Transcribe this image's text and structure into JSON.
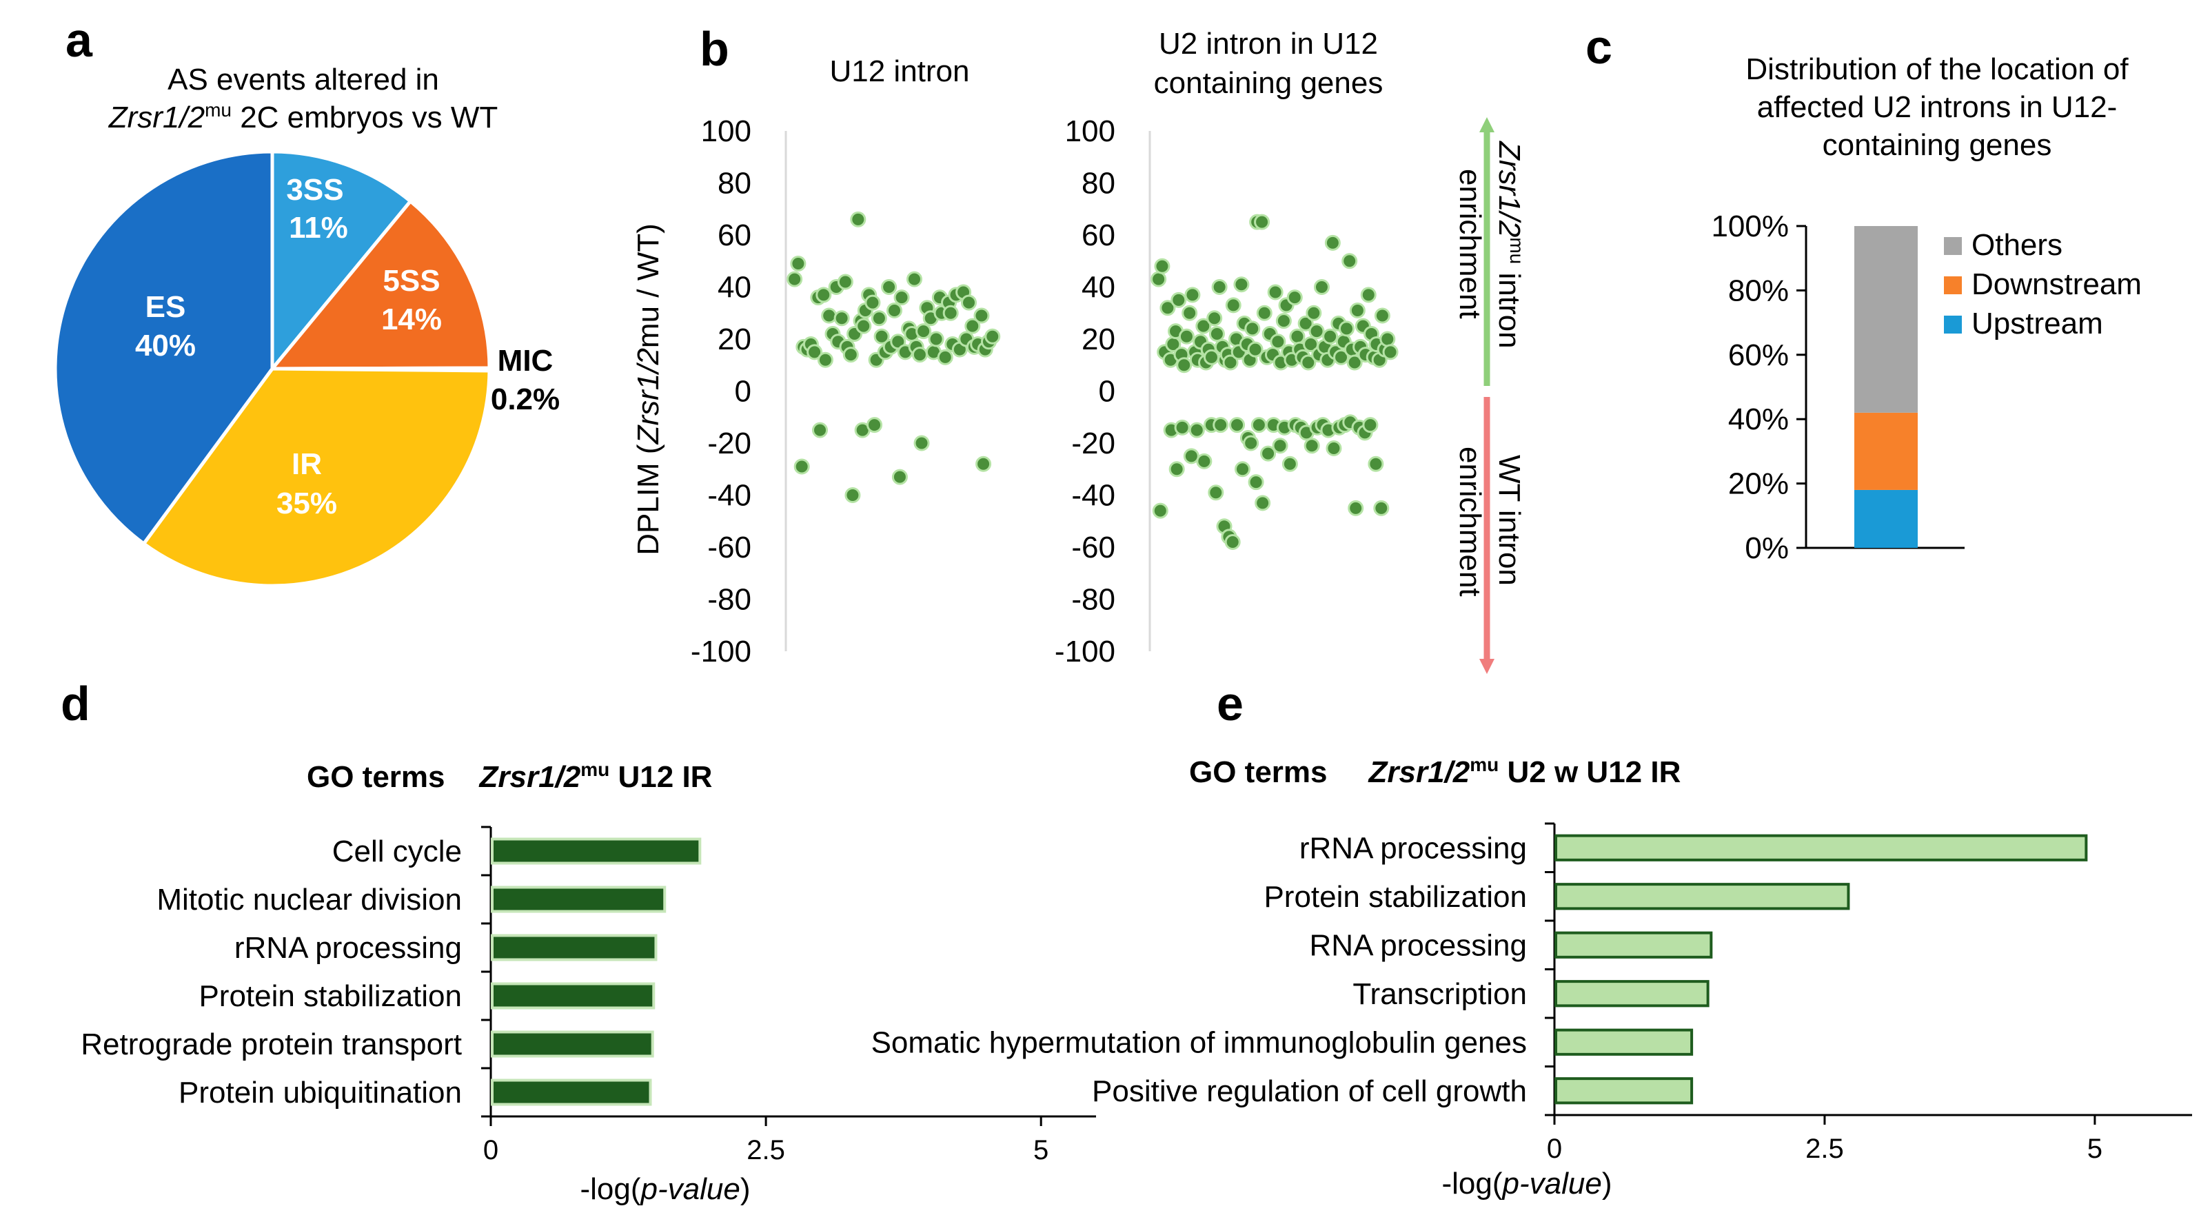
{
  "panels": {
    "a": "a",
    "b": "b",
    "c": "c",
    "d": "d",
    "e": "e"
  },
  "colors": {
    "dark_green": "#1e5c1e",
    "mid_green": "#2e7d32",
    "light_green": "#c6e6b8",
    "pale_green_fill": "#b8e0a6",
    "point_fill": "#4a8f3a",
    "point_stroke": "#b5e3a5",
    "axis": "#000000",
    "grid": "#d9d9d9",
    "arrow_green": "#8fcf7a",
    "arrow_red": "#f07d7d"
  },
  "chart_data": [
    {
      "id": "pie",
      "type": "pie",
      "title_line1": "AS events  altered in",
      "title_italic": "Zrsr1/2",
      "title_sup": "mu",
      "title_line2_rest": " 2C embryos vs WT",
      "slices": [
        {
          "name": "3SS",
          "value": 11,
          "pct_label": "11%",
          "color": "#2e9fdc"
        },
        {
          "name": "5SS",
          "value": 14,
          "pct_label": "14%",
          "color": "#f26d21"
        },
        {
          "name": "MIC",
          "value": 0.2,
          "pct_label": "0.2%",
          "color": "#8c8c8c"
        },
        {
          "name": "IR",
          "value": 35,
          "pct_label": "35%",
          "color": "#ffc20e"
        },
        {
          "name": "ES",
          "value": 40,
          "pct_label": "40%",
          "color": "#1a6fc6"
        }
      ]
    },
    {
      "id": "scatter_u12",
      "type": "scatter",
      "title": "U12  intron",
      "ylabel_prefix": "DPLIM (",
      "ylabel_italic": "Zrsr1/2",
      "ylabel_suffix": "mu / WT)",
      "ylim": [
        -100,
        100
      ],
      "yticks": [
        100,
        80,
        60,
        40,
        20,
        0,
        -20,
        -40,
        -60,
        -80,
        -100
      ],
      "points_index": [
        0,
        1,
        2,
        3,
        4,
        5,
        6,
        7,
        8,
        9,
        10,
        11,
        12,
        13,
        14,
        15,
        16,
        17,
        18,
        19,
        20,
        21,
        22,
        23,
        24,
        25,
        26,
        27,
        28,
        29,
        30,
        31,
        32,
        33,
        34,
        35,
        36,
        37,
        38,
        39,
        40,
        41,
        42,
        43,
        44,
        45,
        46,
        47,
        48,
        49,
        50,
        51,
        52,
        53,
        54,
        55,
        56,
        57,
        58,
        59,
        60,
        61,
        62,
        63,
        64,
        65,
        66,
        67,
        68,
        69
      ],
      "points_y": [
        43,
        49,
        17,
        16,
        18,
        15,
        36,
        37,
        12,
        29,
        22,
        40,
        19,
        28,
        42,
        17,
        14,
        22,
        66,
        27,
        25,
        31,
        37,
        34,
        12,
        28,
        21,
        15,
        40,
        17,
        31,
        19,
        36,
        15,
        24,
        22,
        43,
        17,
        14,
        23,
        32,
        28,
        15,
        20,
        36,
        30,
        13,
        34,
        18,
        37,
        16,
        38,
        20,
        34,
        25,
        17,
        18,
        29,
        16,
        19,
        -29,
        -15,
        -40,
        -15,
        -13,
        -33,
        -20,
        -28,
        21,
        30
      ],
      "points_x": [
        0.5,
        1.5,
        3,
        4,
        5,
        6,
        7,
        8.5,
        9,
        10,
        11,
        12,
        12.5,
        13.5,
        14.5,
        15,
        16,
        17,
        18,
        18.8,
        19.5,
        20,
        21,
        22,
        23,
        23.8,
        24.5,
        25.5,
        26.5,
        27,
        28,
        29,
        30,
        31,
        32,
        32.8,
        33.5,
        34,
        35,
        36,
        37,
        38,
        38.8,
        39.5,
        40.5,
        41,
        42,
        43,
        44,
        45,
        46,
        47,
        47.8,
        48.5,
        49.5,
        50,
        51,
        52,
        53,
        54,
        2.5,
        7.5,
        16.5,
        19.2,
        22.5,
        29.5,
        35.5,
        52.5,
        55,
        43.5
      ]
    },
    {
      "id": "scatter_u2",
      "type": "scatter",
      "title_line1": "U2 intron in U12",
      "title_line2": "containing genes",
      "ylim": [
        -100,
        100
      ],
      "yticks": [
        100,
        80,
        60,
        40,
        20,
        0,
        -20,
        -40,
        -60,
        -80,
        -100
      ],
      "side_label_top_italic": "Zrsr1/2",
      "side_label_top_sup": "mu",
      "side_label_top_rest": " intron",
      "side_label_top_line2": "enrichment",
      "side_label_bottom_line1": "WT intron",
      "side_label_bottom_line2": "enrichment",
      "points_y": [
        43,
        48,
        15,
        32,
        12,
        18,
        23,
        35,
        14,
        10,
        21,
        30,
        37,
        15,
        12,
        19,
        25,
        11,
        16,
        13,
        28,
        22,
        40,
        17,
        12,
        14,
        11,
        33,
        20,
        15,
        41,
        26,
        18,
        12,
        24,
        16,
        65,
        65,
        30,
        13,
        22,
        14,
        38,
        19,
        11,
        27,
        33,
        15,
        12,
        36,
        21,
        16,
        13,
        26,
        11,
        18,
        30,
        23,
        14,
        40,
        17,
        12,
        21,
        57,
        15,
        26,
        13,
        19,
        24,
        50,
        16,
        11,
        31,
        17,
        25,
        14,
        37,
        22,
        13,
        18,
        12,
        29,
        16,
        20,
        15,
        -46,
        -15,
        -30,
        -14,
        -25,
        -15,
        -27,
        -13,
        -39,
        -13,
        -52,
        -56,
        -58,
        -13,
        -30,
        -18,
        -20,
        -35,
        -13,
        -43,
        -24,
        -13,
        -21,
        -14,
        -28,
        -13,
        -14,
        -16,
        -21,
        -14,
        -13,
        -15,
        -22,
        -14,
        -13,
        -12,
        -45,
        -14,
        -16,
        -13,
        -28,
        -45
      ],
      "points_x": [
        0.5,
        1.5,
        2.2,
        3,
        3.8,
        4.5,
        5.2,
        6,
        6.8,
        7.5,
        8.2,
        9,
        9.8,
        10.5,
        11.2,
        12,
        12.8,
        13.5,
        14.2,
        15,
        15.8,
        16.5,
        17.2,
        18,
        18.8,
        19.5,
        20.2,
        21,
        21.8,
        22.5,
        23.2,
        24,
        24.8,
        25.5,
        26.2,
        27,
        27.5,
        28.8,
        29.5,
        30.2,
        31,
        31.8,
        32.5,
        33.2,
        34,
        34.8,
        35.5,
        36.2,
        37,
        37.8,
        38.5,
        39.2,
        40,
        40.8,
        41.5,
        42.2,
        43,
        43.8,
        44.5,
        45.2,
        46,
        46.8,
        47.5,
        48.2,
        49,
        49.8,
        50.5,
        51.2,
        52,
        52.8,
        53.5,
        54.2,
        55,
        55.8,
        56.5,
        57.2,
        58,
        58.8,
        59.5,
        60.2,
        61,
        61.8,
        62.5,
        63.2,
        64,
        1,
        4,
        5.5,
        7,
        9.5,
        11,
        13,
        15,
        16.2,
        17.5,
        18.5,
        19.8,
        20.8,
        22,
        23.5,
        25,
        25.8,
        27.2,
        28,
        29,
        30.5,
        32,
        33.8,
        35,
        36.5,
        38,
        39.5,
        41,
        42.5,
        44,
        45.5,
        47,
        48.5,
        50,
        51.5,
        53,
        54.5,
        55.5,
        57,
        58.5,
        60,
        61.5,
        63,
        64.5
      ]
    },
    {
      "id": "stacked",
      "type": "bar",
      "title_line1": "Distribution of the location of",
      "title_line2": "affected U2 introns in U12-",
      "title_line3": "containing genes",
      "ylim": [
        0,
        100
      ],
      "ytick_labels": [
        "100%",
        "80%",
        "60%",
        "40%",
        "20%",
        "0%"
      ],
      "ytick_values": [
        100,
        80,
        60,
        40,
        20,
        0
      ],
      "series": [
        {
          "name": "Upstream",
          "value": 18,
          "color": "#1a9ad6"
        },
        {
          "name": "Downstream",
          "value": 24,
          "color": "#f7812a"
        },
        {
          "name": "Others",
          "value": 58,
          "color": "#a6a6a6"
        }
      ],
      "legend_order": [
        "Others",
        "Downstream",
        "Upstream"
      ]
    },
    {
      "id": "go_u12",
      "type": "bar",
      "header_go": "GO terms",
      "header_italic": "Zrsr1/2",
      "header_sup": "mu",
      "header_rest": " U12 IR",
      "categories": [
        "Cell cycle",
        "Mitotic nuclear division",
        "rRNA processing",
        "Protein stabilization",
        "Retrograde protein transport",
        "Protein ubiquitination"
      ],
      "values": [
        1.9,
        1.58,
        1.5,
        1.48,
        1.47,
        1.45
      ],
      "xlim": [
        0,
        5.5
      ],
      "xtick_values": [
        0,
        2.5,
        5
      ],
      "xtick_labels": [
        "0",
        "2.5",
        "5"
      ],
      "xlabel_prefix": "-log(",
      "xlabel_italic": "p-value",
      "xlabel_suffix": ")"
    },
    {
      "id": "go_u2",
      "type": "bar",
      "header_go": "GO terms",
      "header_italic": "Zrsr1/2",
      "header_sup": "mu",
      "header_rest": " U2 w U12 IR",
      "categories": [
        "rRNA processing",
        "Protein stabilization",
        "RNA processing",
        "Transcription",
        "Somatic hypermutation of immunoglobulin genes",
        "Positive regulation of cell growth"
      ],
      "values": [
        4.92,
        2.72,
        1.45,
        1.42,
        1.27,
        1.27
      ],
      "xlim": [
        0,
        5.9
      ],
      "xtick_values": [
        0,
        2.5,
        5
      ],
      "xtick_labels": [
        "0",
        "2.5",
        "5"
      ],
      "xlabel_prefix": "-log(",
      "xlabel_italic": "p-value",
      "xlabel_suffix": ")"
    }
  ]
}
